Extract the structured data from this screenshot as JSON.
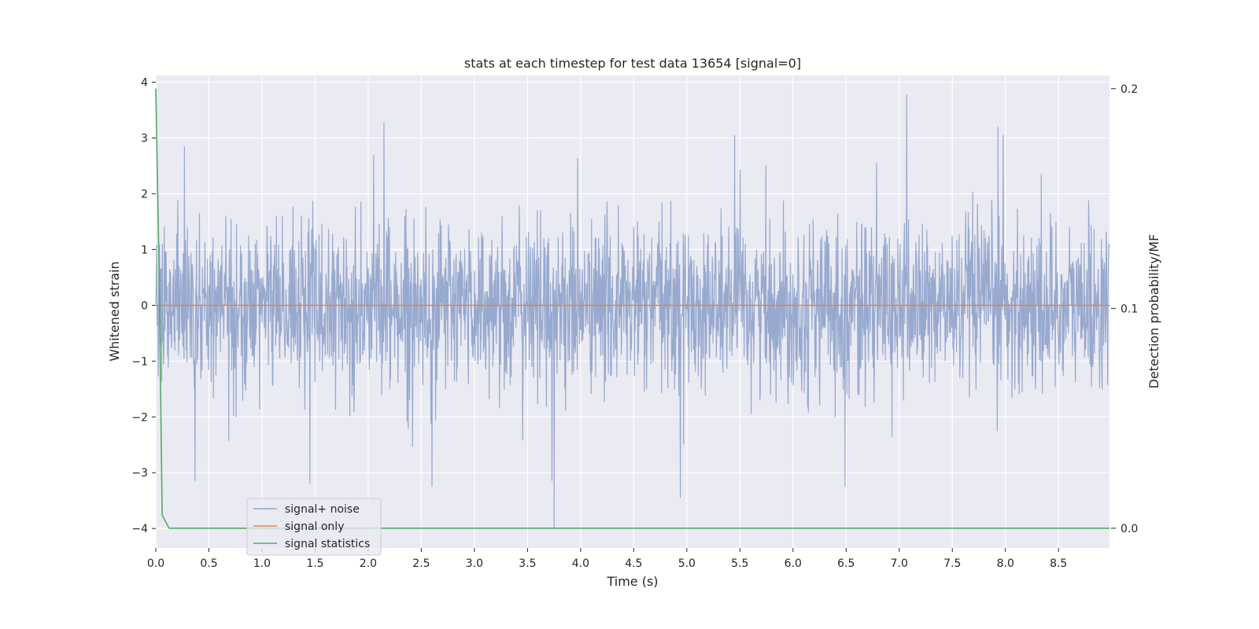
{
  "chart_data": {
    "type": "line",
    "title": "stats at each timestep for test data 13654 [signal=0]",
    "xlabel": "Time (s)",
    "ylabel": "Whitened strain",
    "ylabel_right": "Detection probability/MF",
    "xlim": [
      0.0,
      8.98
    ],
    "ylim": [
      -4.35,
      4.12
    ],
    "ylim_right": [
      -0.009,
      0.206
    ],
    "x_ticks": [
      0.0,
      0.5,
      1.0,
      1.5,
      2.0,
      2.5,
      3.0,
      3.5,
      4.0,
      4.5,
      5.0,
      5.5,
      6.0,
      6.5,
      7.0,
      7.5,
      8.0,
      8.5
    ],
    "x_tick_labels": [
      "0.0",
      "0.5",
      "1.0",
      "1.5",
      "2.0",
      "2.5",
      "3.0",
      "3.5",
      "4.0",
      "4.5",
      "5.0",
      "5.5",
      "6.0",
      "6.5",
      "7.0",
      "7.5",
      "8.0",
      "8.5"
    ],
    "y_ticks": [
      -4,
      -3,
      -2,
      -1,
      0,
      1,
      2,
      3,
      4
    ],
    "y_tick_labels": [
      "−4",
      "−3",
      "−2",
      "−1",
      "0",
      "1",
      "2",
      "3",
      "4"
    ],
    "y_right_ticks": [
      0.0,
      0.1,
      0.2
    ],
    "y_right_tick_labels": [
      "0.0",
      "0.1",
      "0.2"
    ],
    "grid": true,
    "legend_position": "lower-left",
    "series": [
      {
        "name": "signal+ noise",
        "axis": "left",
        "color": "#92a5cc",
        "description_values": "dense whitened noise, roughly within [-2.5, 2.5] with peaks near 3.8 (t~7.07) and troughs near -4.0 (t~3.75)",
        "peaks": [
          [
            0.27,
            2.85
          ],
          [
            0.37,
            -3.15
          ],
          [
            1.45,
            -3.2
          ],
          [
            2.15,
            3.28
          ],
          [
            2.6,
            -3.25
          ],
          [
            3.73,
            -3.15
          ],
          [
            3.75,
            -4.0
          ],
          [
            4.94,
            -3.45
          ],
          [
            5.45,
            3.05
          ],
          [
            6.49,
            -3.25
          ],
          [
            7.07,
            3.78
          ],
          [
            7.93,
            3.2
          ],
          [
            7.98,
            3.05
          ]
        ],
        "amplitude_std": 0.75
      },
      {
        "name": "signal only",
        "axis": "left",
        "color": "#dd8452",
        "x": [
          0.0,
          8.98
        ],
        "y": [
          0.0,
          0.0
        ]
      },
      {
        "name": "signal statistics",
        "axis": "right",
        "color": "#55a868",
        "x": [
          0.0,
          0.03,
          0.06,
          0.125,
          0.25,
          1.0,
          2.0,
          3.0,
          4.0,
          5.0,
          6.0,
          7.0,
          8.0,
          8.98
        ],
        "y": [
          0.2,
          0.12,
          0.006,
          0.0,
          0.0,
          0.0,
          0.0,
          0.0,
          0.0,
          0.0,
          0.0,
          0.0,
          0.0,
          0.0
        ]
      }
    ]
  },
  "colors": {
    "plot_background": "#eaeaf2",
    "grid": "#ffffff",
    "text": "#262626"
  }
}
